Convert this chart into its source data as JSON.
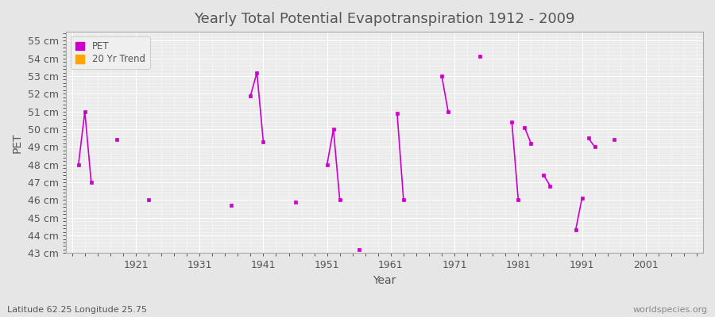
{
  "title": "Yearly Total Potential Evapotranspiration 1912 - 2009",
  "xlabel": "Year",
  "ylabel": "PET",
  "subtitle": "Latitude 62.25 Longitude 25.75",
  "watermark": "worldspecies.org",
  "xlim": [
    1910,
    2010
  ],
  "ylim": [
    43,
    55.5
  ],
  "yticks": [
    43,
    44,
    45,
    46,
    47,
    48,
    49,
    50,
    51,
    52,
    53,
    54,
    55
  ],
  "xticks": [
    1911,
    1921,
    1931,
    1941,
    1951,
    1961,
    1971,
    1981,
    1991,
    2001
  ],
  "xtick_labels": [
    "",
    "1921",
    "1931",
    "1941",
    "1951",
    "1961",
    "1971",
    "1981",
    "1991",
    "2001"
  ],
  "pet_data": [
    [
      1912,
      48.0
    ],
    [
      1913,
      51.0
    ],
    [
      1914,
      47.0
    ],
    [
      null,
      null
    ],
    [
      1918,
      49.4
    ],
    [
      null,
      null
    ],
    [
      1923,
      46.0
    ],
    [
      null,
      null
    ],
    [
      1936,
      45.7
    ],
    [
      null,
      null
    ],
    [
      1939,
      51.9
    ],
    [
      1940,
      53.2
    ],
    [
      1941,
      49.3
    ],
    [
      null,
      null
    ],
    [
      1946,
      45.9
    ],
    [
      null,
      null
    ],
    [
      1951,
      48.0
    ],
    [
      1952,
      50.0
    ],
    [
      1953,
      46.0
    ],
    [
      null,
      null
    ],
    [
      1956,
      43.2
    ],
    [
      null,
      null
    ],
    [
      1962,
      50.9
    ],
    [
      1963,
      46.0
    ],
    [
      null,
      null
    ],
    [
      1969,
      53.0
    ],
    [
      1970,
      51.0
    ],
    [
      null,
      null
    ],
    [
      1975,
      54.1
    ],
    [
      null,
      null
    ],
    [
      1980,
      50.4
    ],
    [
      1981,
      46.0
    ],
    [
      null,
      null
    ],
    [
      1982,
      50.1
    ],
    [
      1983,
      49.2
    ],
    [
      null,
      null
    ],
    [
      1985,
      47.4
    ],
    [
      1986,
      46.8
    ],
    [
      null,
      null
    ],
    [
      1990,
      44.3
    ],
    [
      1991,
      46.1
    ],
    [
      null,
      null
    ],
    [
      1992,
      49.5
    ],
    [
      1993,
      49.0
    ],
    [
      null,
      null
    ],
    [
      1996,
      49.4
    ]
  ],
  "pet_color": "#cc00cc",
  "trend_color": "#ffa500",
  "bg_color": "#e6e6e6",
  "plot_bg_color": "#ebebeb",
  "grid_color": "#ffffff",
  "text_color": "#555555",
  "legend_bg": "#f0f0f0"
}
